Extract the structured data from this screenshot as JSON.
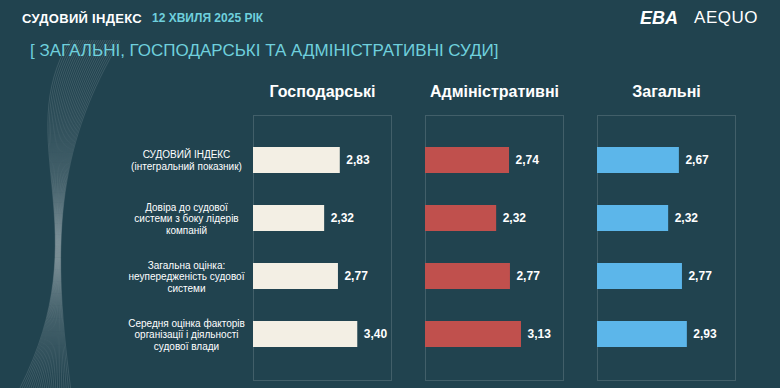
{
  "chart_data": {
    "type": "bar",
    "orientation": "horizontal",
    "title": "СУДОВИЙ ІНДЕКС",
    "subtitle": "[ ЗАГАЛЬНІ, ГОСПОДАРСЬКІ ТА АДМІНІСТРАТИВНІ СУДИ]",
    "annotations": [
      "12 ХВИЛЯ 2025 РІК",
      "EBA",
      "AEQUO"
    ],
    "categories": [
      "СУДОВИЙ ІНДЕКС\n(інтегральний показник)",
      "Довіра до судової\nсистеми з боку лідерів\nкомпаній",
      "Загальна оцінка:\nнеупередженість судової\nсистеми",
      "Середня оцінка факторів\nорганізації і діяльності\nсудової влади"
    ],
    "series": [
      {
        "name": "Господарські",
        "color": "#f3efe4",
        "values": [
          2.83,
          2.32,
          2.77,
          3.4
        ],
        "value_labels": [
          "2,83",
          "2,32",
          "2,77",
          "3,40"
        ]
      },
      {
        "name": "Адміністративні",
        "color": "#c0504d",
        "values": [
          2.74,
          2.32,
          2.77,
          3.13
        ],
        "value_labels": [
          "2,74",
          "2,32",
          "2,77",
          "3,13"
        ]
      },
      {
        "name": "Загальні",
        "color": "#5cb6ea",
        "values": [
          2.67,
          2.32,
          2.77,
          2.93
        ],
        "value_labels": [
          "2,67",
          "2,32",
          "2,77",
          "2,93"
        ]
      }
    ],
    "xlim": [
      0,
      4.5
    ],
    "data_labels": true,
    "tick_labels": "y"
  }
}
